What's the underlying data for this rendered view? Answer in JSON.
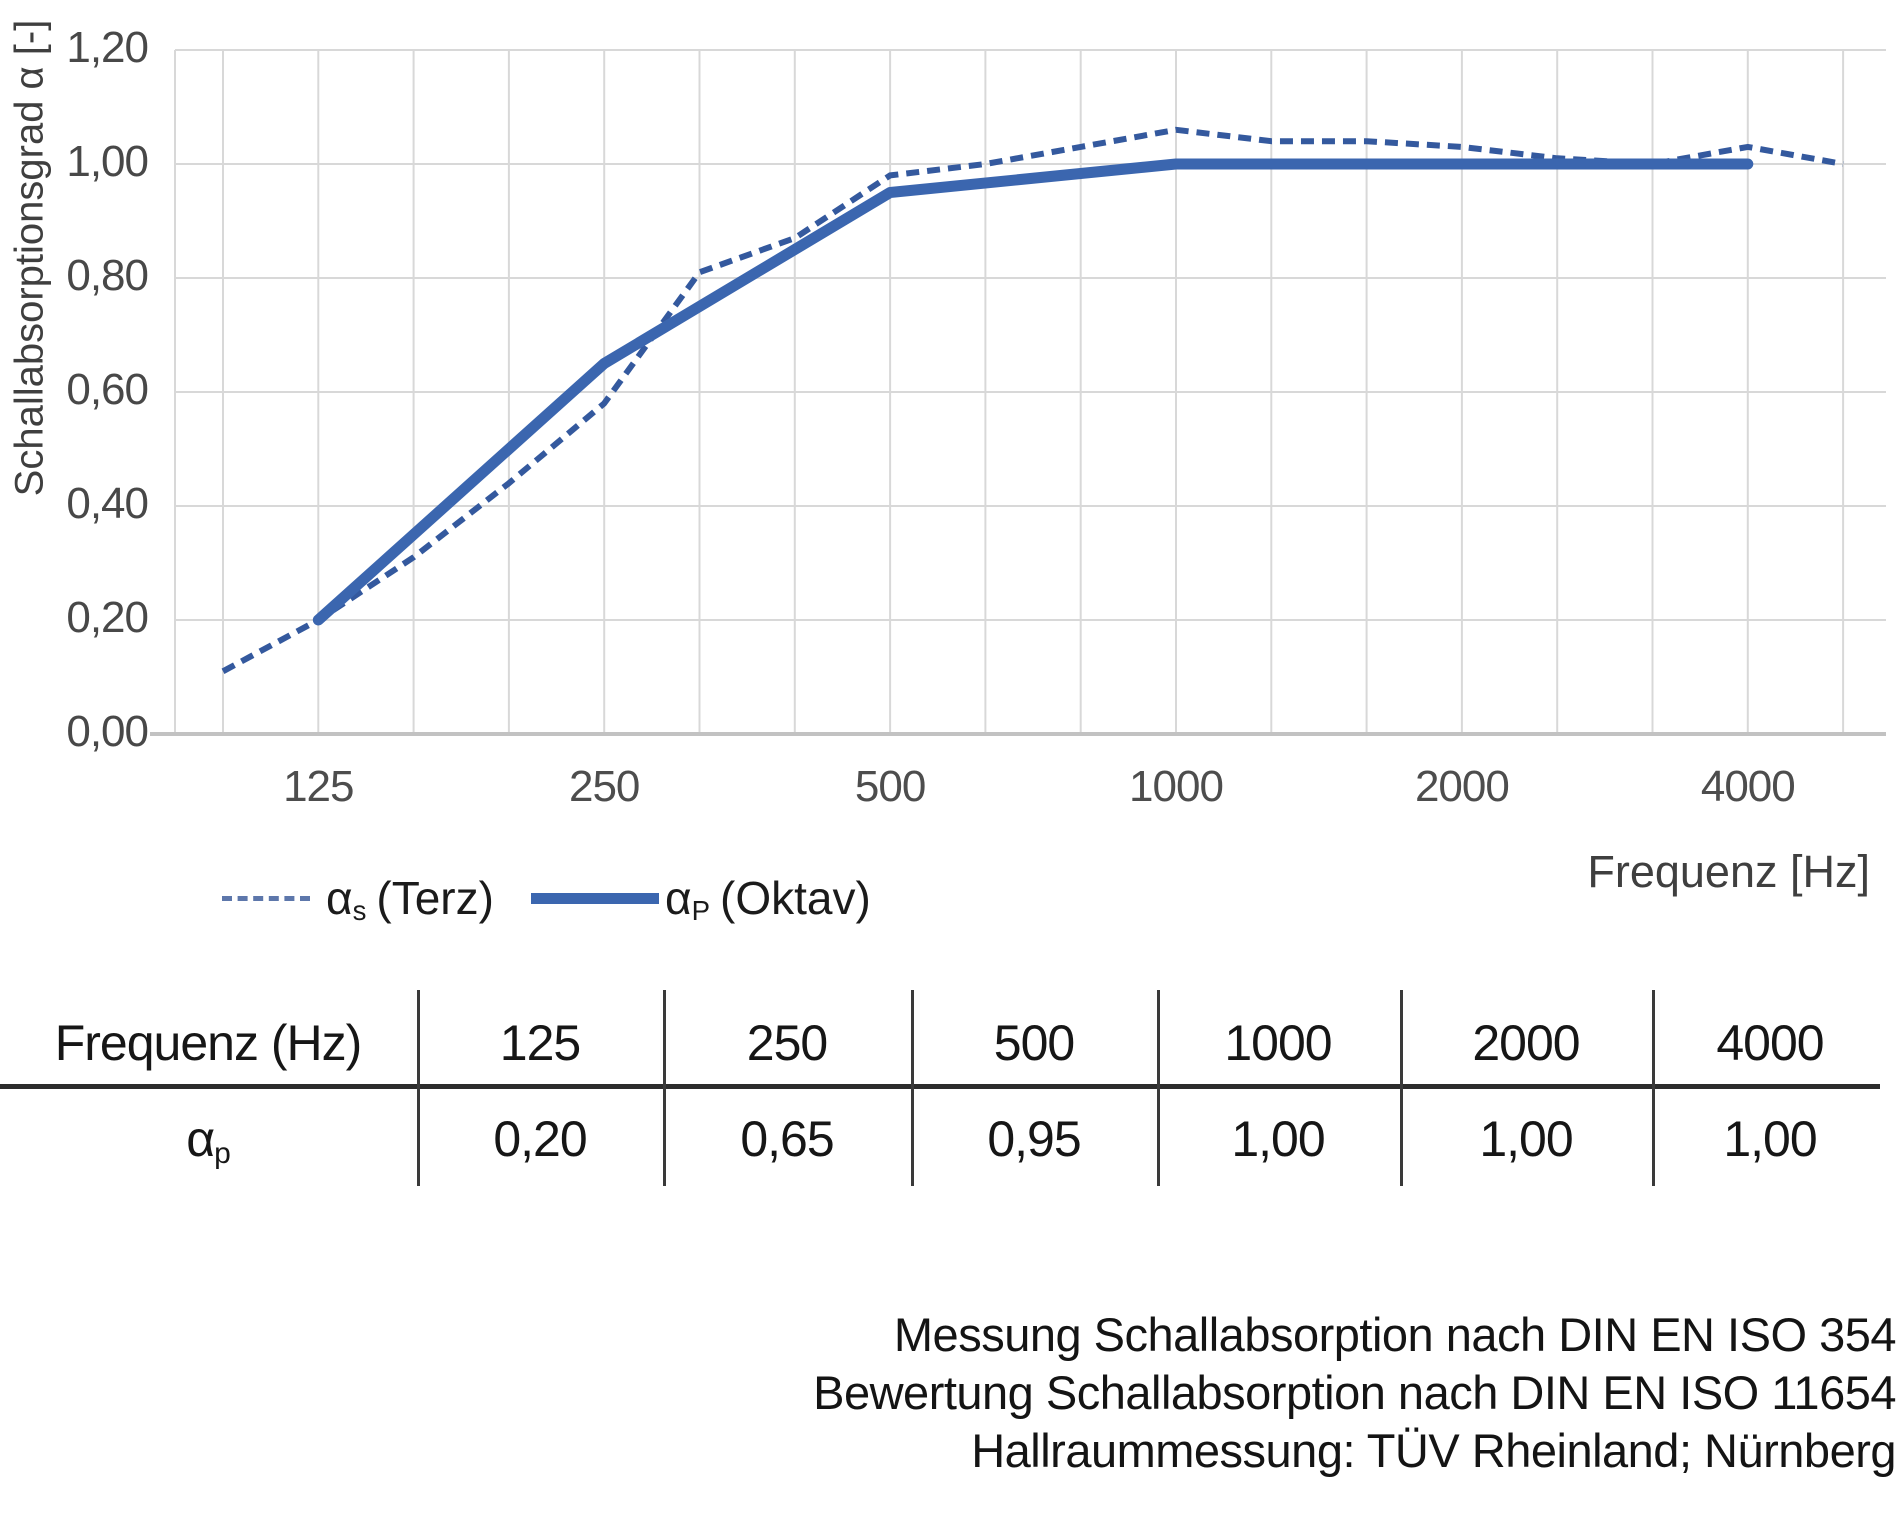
{
  "axis": {
    "y_title": "Schallabsorptionsgrad α [-]",
    "x_title": "Frequenz [Hz]",
    "y_ticks": [
      "0,00",
      "0,20",
      "0,40",
      "0,60",
      "0,80",
      "1,00",
      "1,20"
    ],
    "x_ticks": [
      "125",
      "250",
      "500",
      "1000",
      "2000",
      "4000"
    ]
  },
  "chart_data": {
    "type": "line",
    "title": "",
    "xlabel": "Frequenz [Hz]",
    "ylabel": "Schallabsorptionsgrad α [-]",
    "ylim": [
      0,
      1.2
    ],
    "ytick_step": 0.2,
    "grid": true,
    "legend_position": "bottom-left",
    "x_scale": "third-octave categories",
    "categories": [
      100,
      125,
      160,
      200,
      250,
      315,
      400,
      500,
      630,
      800,
      1000,
      1250,
      1600,
      2000,
      2500,
      3150,
      4000,
      5000
    ],
    "xtick_categories": [
      125,
      250,
      500,
      1000,
      2000,
      4000
    ],
    "series": [
      {
        "name": "αs (Terz)",
        "style": "dashed",
        "x": [
          100,
          125,
          160,
          200,
          250,
          315,
          400,
          500,
          630,
          800,
          1000,
          1250,
          1600,
          2000,
          2500,
          3150,
          4000,
          5000
        ],
        "values": [
          0.11,
          0.2,
          0.31,
          0.44,
          0.58,
          0.81,
          0.87,
          0.98,
          1.0,
          1.03,
          1.06,
          1.04,
          1.04,
          1.03,
          1.01,
          1.0,
          1.03,
          1.0
        ]
      },
      {
        "name": "αp (Oktav)",
        "style": "solid",
        "x": [
          125,
          250,
          500,
          1000,
          2000,
          4000
        ],
        "values": [
          0.2,
          0.65,
          0.95,
          1.0,
          1.0,
          1.0
        ]
      }
    ]
  },
  "legend": {
    "terz_alpha": "α",
    "terz_sub": "s",
    "terz_rest": "(Terz)",
    "oktav_alpha": "α",
    "oktav_sub": "P",
    "oktav_rest": "(Oktav)"
  },
  "table": {
    "header_label": "Frequenz (Hz)",
    "frequencies": [
      "125",
      "250",
      "500",
      "1000",
      "2000",
      "4000"
    ],
    "row_alpha": "α",
    "row_sub": "p",
    "values": [
      "0,20",
      "0,65",
      "0,95",
      "1,00",
      "1,00",
      "1,00"
    ]
  },
  "footnote": {
    "lines": [
      "Messung Schallabsorption nach DIN EN ISO 354",
      "Bewertung Schallabsorption nach DIN EN ISO 11654",
      "Hallraummessung: TÜV Rheinland; Nürnberg"
    ]
  },
  "colors": {
    "series_dashed": "#34599e",
    "series_solid": "#3b66af",
    "grid": "#d8d8d8",
    "axis_line": "#c2c2c2",
    "table_line": "#2c2c2c"
  }
}
